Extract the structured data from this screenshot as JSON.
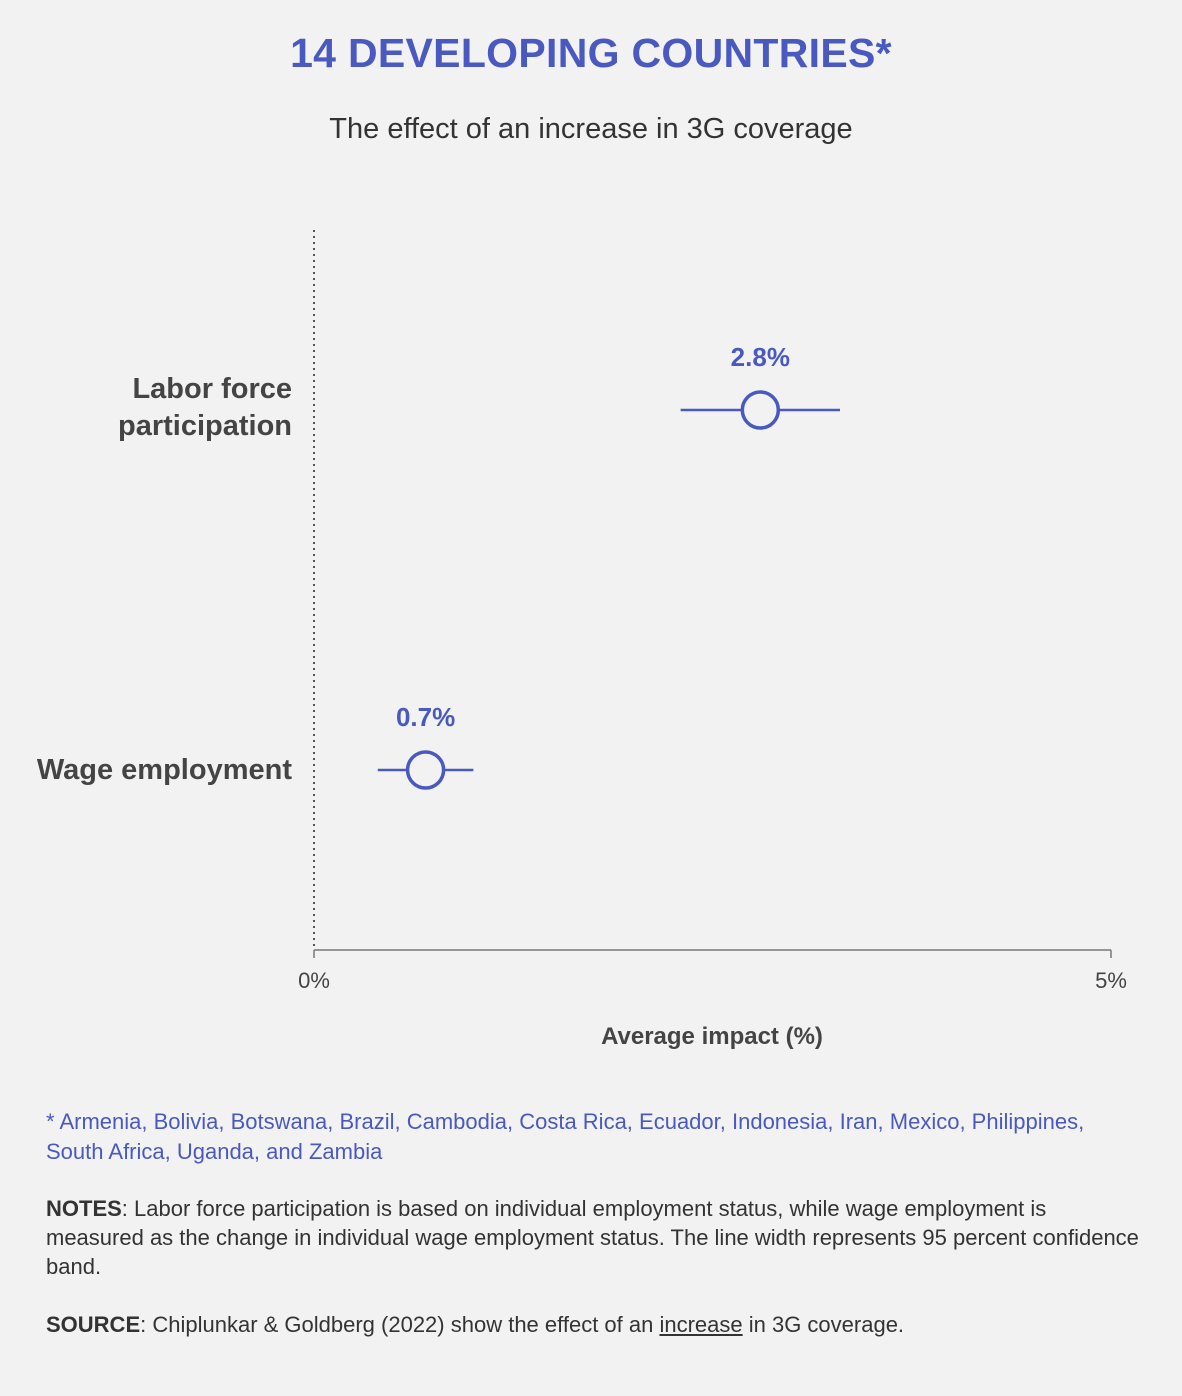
{
  "header": {
    "title": "14 DEVELOPING COUNTRIES*",
    "subtitle": "The effect of an increase in 3G coverage"
  },
  "colors": {
    "accent": "#4a59bf",
    "text": "#333333",
    "background": "#f2f2f2",
    "axis": "#555555"
  },
  "chart_data": {
    "type": "scatter",
    "title": "14 DEVELOPING COUNTRIES*",
    "subtitle": "The effect of an increase in 3G coverage",
    "xlabel": "Average impact (%)",
    "ylabel": "",
    "xlim": [
      0,
      5
    ],
    "x_ticks": [
      "0%",
      "5%"
    ],
    "grid": false,
    "reference_line": {
      "x": 0,
      "style": "dotted"
    },
    "points": [
      {
        "category_lines": [
          "Labor force",
          "participation"
        ],
        "value": 2.8,
        "ci_low": 2.3,
        "ci_high": 3.3,
        "label": "2.8%"
      },
      {
        "category_lines": [
          "Wage employment"
        ],
        "value": 0.7,
        "ci_low": 0.4,
        "ci_high": 1.0,
        "label": "0.7%"
      }
    ]
  },
  "footer": {
    "countries_note": "* Armenia, Bolivia, Botswana, Brazil, Cambodia, Costa Rica, Ecuador, Indonesia, Iran, Mexico, Philippines, South Africa, Uganda, and Zambia",
    "notes_lead": "NOTES",
    "notes_text": ": Labor force participation is based on individual employment status, while wage employment is measured as the change in individual wage employment status. The line width represents 95 percent confidence band.",
    "source_lead": "SOURCE",
    "source_text_before": ": Chiplunkar & Goldberg (2022) show the effect of an ",
    "source_link": "increase",
    "source_text_after": " in 3G coverage."
  }
}
